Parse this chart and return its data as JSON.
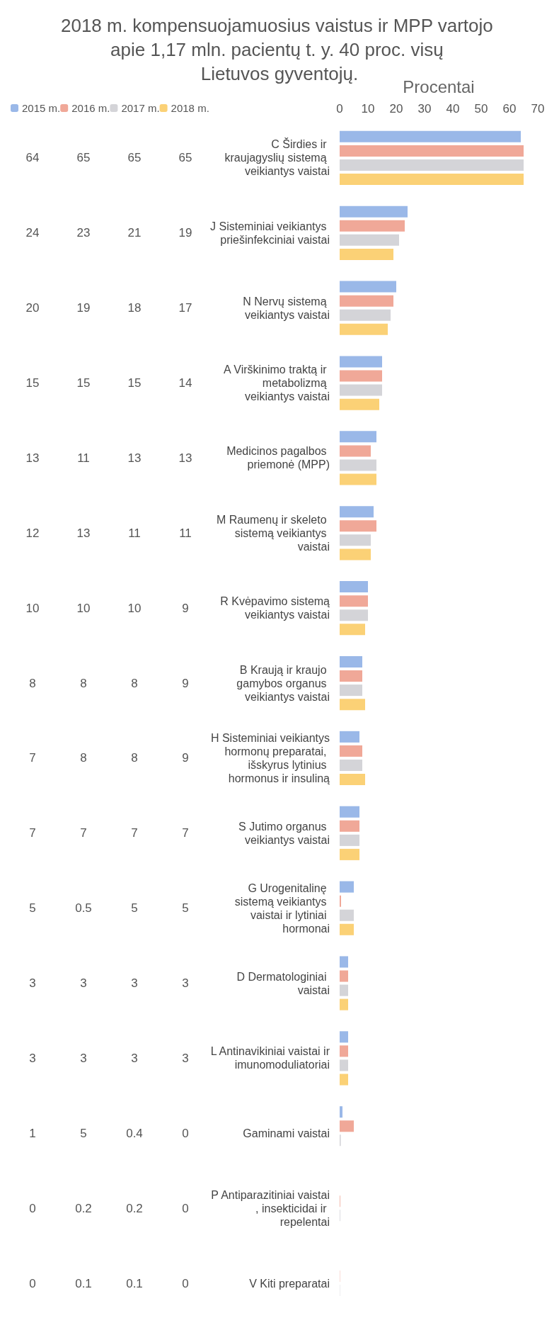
{
  "chart_data": {
    "type": "bar",
    "orientation": "horizontal",
    "title": "2018 m. kompensuojamuosius vaistus ir MPP vartojo apie 1,17 mln. pacientų t. y. 40 proc. visų Lietuvos gyventojų.",
    "xlabel": "Procentai",
    "categories": [
      "C Širdies ir kraujagyslių sistemą veikiantys vaistai",
      "J Sisteminiai veikiantys priešinfekciniai vaistai",
      "N Nervų sistemą veikiantys vaistai",
      "A Virškinimo traktą ir metabolizmą veikiantys vaistai",
      "Medicinos pagalbos priemonė (MPP)",
      "M Raumenų ir skeleto sistemą veikiantys vaistai",
      "R Kvėpavimo sistemą veikiantys vaistai",
      "B Kraują ir kraujo gamybos organus veikiantys vaistai",
      "H Sisteminiai veikiantys hormonų preparatai, išskyrus lytinius hormonus ir insuliną",
      "S Jutimo organus veikiantys vaistai",
      "G Urogenitalinę sistemą veikiantys vaistai ir lytiniai hormonai",
      "D Dermatologiniai vaistai",
      "L Antinavikiniai vaistai ir imunomoduliatoriai",
      "Gaminami vaistai",
      "P Antiparazitiniai vaistai, insekticidai ir repelentai",
      "V Kiti preparatai"
    ],
    "series": [
      {
        "name": "2015 m.",
        "color": "#9ab8e8",
        "values": [
          64,
          24,
          20,
          15,
          13,
          12,
          10,
          8,
          7,
          7,
          5,
          3,
          3,
          1,
          0,
          0
        ]
      },
      {
        "name": "2016 m.",
        "color": "#f0a898",
        "values": [
          65,
          23,
          19,
          15,
          11,
          13,
          10,
          8,
          8,
          7,
          0.5,
          3,
          3,
          5,
          0.2,
          0.1
        ]
      },
      {
        "name": "2017 m.",
        "color": "#d4d4d8",
        "values": [
          65,
          21,
          18,
          15,
          13,
          11,
          10,
          8,
          8,
          7,
          5,
          3,
          3,
          0.4,
          0.2,
          0.1
        ]
      },
      {
        "name": "2018 m.",
        "color": "#fbd176",
        "values": [
          65,
          19,
          17,
          14,
          13,
          11,
          9,
          9,
          9,
          7,
          5,
          3,
          3,
          0,
          0,
          0
        ]
      }
    ],
    "xlim": [
      0,
      70
    ],
    "xticks": [
      0,
      10,
      20,
      30,
      40,
      50,
      60,
      70
    ],
    "legend": "top left",
    "data_labels": true
  }
}
